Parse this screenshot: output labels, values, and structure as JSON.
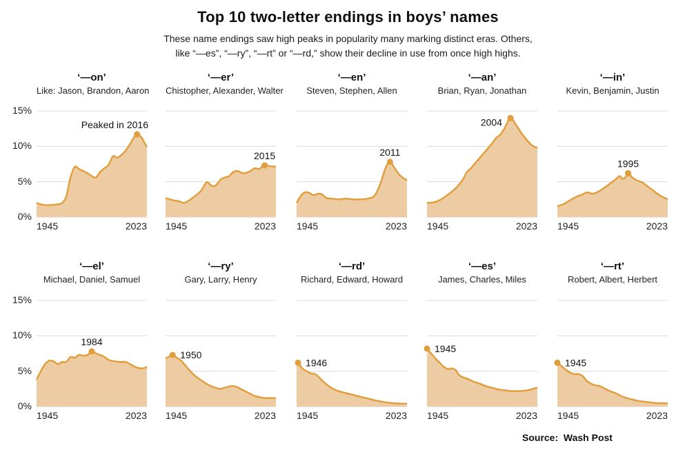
{
  "header": {
    "title": "Top 10 two-letter endings in boys’ names",
    "subtitle_lines": [
      "These name endings saw high peaks in popularity many marking distinct eras. Others,",
      "like “—es”, “—ry”, “—rt” or “—rd,” show their decline in use from once high highs."
    ]
  },
  "footer": {
    "source_label": "Source:",
    "source_value": "Wash Post"
  },
  "colors": {
    "line": "#E09E3C",
    "fill": "#EECCA3",
    "grid": "#D9D9D9",
    "annotation_text": "#111111",
    "axis_text": "#222222"
  },
  "axes": {
    "ylim": [
      0,
      15
    ],
    "xlim": [
      1945,
      2023
    ],
    "y_tick_labels": [
      "15%",
      "10%",
      "5%",
      "0%"
    ],
    "x_tick_labels": [
      "1945",
      "2023"
    ],
    "grid": true
  },
  "chart_data": [
    {
      "type": "area",
      "ending": "‘—on’",
      "examples": "Like: Jason, Brandon, Aaron",
      "annotation": {
        "label": "Peaked in 2016",
        "year": 2016,
        "value": 11.7,
        "placement": "above-end"
      },
      "x": [
        1945,
        1950,
        1955,
        1960,
        1963,
        1966,
        1969,
        1972,
        1975,
        1978,
        1981,
        1984,
        1987,
        1990,
        1993,
        1996,
        1999,
        2002,
        2005,
        2008,
        2011,
        2014,
        2016,
        2019,
        2021,
        2023
      ],
      "y": [
        2.0,
        1.7,
        1.7,
        1.8,
        2.0,
        2.9,
        5.6,
        7.1,
        6.8,
        6.5,
        6.2,
        5.8,
        5.6,
        6.4,
        6.9,
        7.4,
        8.6,
        8.4,
        8.8,
        9.4,
        10.3,
        11.3,
        11.7,
        11.3,
        10.6,
        9.9
      ]
    },
    {
      "type": "area",
      "ending": "‘—er’",
      "examples": "Chistopher, Alexander, Walter",
      "annotation": {
        "label": "2015",
        "year": 2015,
        "value": 7.3,
        "placement": "above"
      },
      "x": [
        1945,
        1950,
        1955,
        1958,
        1962,
        1966,
        1970,
        1974,
        1977,
        1980,
        1984,
        1987,
        1990,
        1993,
        1996,
        2000,
        2004,
        2008,
        2011,
        2015,
        2019,
        2023
      ],
      "y": [
        2.7,
        2.4,
        2.2,
        2.0,
        2.4,
        3.0,
        3.7,
        4.9,
        4.5,
        4.4,
        5.3,
        5.6,
        5.8,
        6.4,
        6.5,
        6.2,
        6.4,
        6.9,
        6.8,
        7.3,
        7.2,
        7.1
      ]
    },
    {
      "type": "area",
      "ending": "‘—en’",
      "examples": "Steven, Stephen, Allen",
      "annotation": {
        "label": "2011",
        "year": 2011,
        "value": 7.8,
        "placement": "above"
      },
      "x": [
        1945,
        1948,
        1951,
        1954,
        1957,
        1960,
        1963,
        1966,
        1970,
        1975,
        1980,
        1985,
        1990,
        1995,
        2000,
        2004,
        2008,
        2011,
        2014,
        2018,
        2023
      ],
      "y": [
        2.0,
        3.0,
        3.5,
        3.4,
        3.1,
        3.3,
        3.2,
        2.7,
        2.6,
        2.5,
        2.6,
        2.5,
        2.5,
        2.6,
        3.0,
        4.6,
        7.0,
        7.8,
        7.0,
        5.9,
        5.2
      ]
    },
    {
      "type": "area",
      "ending": "‘—an’",
      "examples": "Brian, Ryan, Jonathan",
      "annotation": {
        "label": "2004",
        "year": 2004,
        "value": 14.0,
        "placement": "left"
      },
      "x": [
        1945,
        1950,
        1955,
        1960,
        1965,
        1970,
        1973,
        1976,
        1979,
        1982,
        1985,
        1988,
        1991,
        1994,
        1997,
        2000,
        2004,
        2008,
        2012,
        2016,
        2020,
        2023
      ],
      "y": [
        2.0,
        2.1,
        2.5,
        3.2,
        4.0,
        5.2,
        6.3,
        6.9,
        7.6,
        8.3,
        9.0,
        9.7,
        10.4,
        11.2,
        11.7,
        12.6,
        14.0,
        13.0,
        11.8,
        10.8,
        10.0,
        9.8
      ]
    },
    {
      "type": "area",
      "ending": "‘—in’",
      "examples": "Kevin, Benjamin, Justin",
      "annotation": {
        "label": "1995",
        "year": 1995,
        "value": 6.2,
        "placement": "above"
      },
      "x": [
        1945,
        1950,
        1955,
        1960,
        1963,
        1966,
        1970,
        1974,
        1978,
        1982,
        1986,
        1989,
        1991,
        1993,
        1995,
        1998,
        2001,
        2005,
        2009,
        2013,
        2017,
        2020,
        2023
      ],
      "y": [
        1.5,
        1.9,
        2.5,
        3.0,
        3.2,
        3.5,
        3.3,
        3.6,
        4.1,
        4.7,
        5.3,
        5.8,
        5.4,
        5.6,
        6.2,
        5.6,
        5.2,
        4.9,
        4.3,
        3.7,
        3.1,
        2.8,
        2.5
      ]
    },
    {
      "type": "area",
      "ending": "‘—el’",
      "examples": "Michael, Daniel, Samuel",
      "annotation": {
        "label": "1984",
        "year": 1984,
        "value": 7.8,
        "placement": "above"
      },
      "x": [
        1945,
        1948,
        1951,
        1954,
        1957,
        1960,
        1963,
        1966,
        1969,
        1972,
        1975,
        1978,
        1981,
        1984,
        1987,
        1990,
        1993,
        1996,
        2000,
        2004,
        2008,
        2012,
        2016,
        2020,
        2023
      ],
      "y": [
        3.8,
        5.0,
        6.0,
        6.5,
        6.4,
        6.0,
        6.3,
        6.3,
        7.0,
        6.9,
        7.3,
        7.2,
        7.3,
        7.8,
        7.5,
        7.3,
        7.0,
        6.6,
        6.4,
        6.3,
        6.3,
        5.9,
        5.5,
        5.4,
        5.6
      ]
    },
    {
      "type": "area",
      "ending": "‘—ry’",
      "examples": "Gary, Larry, Henry",
      "annotation": {
        "label": "1950",
        "year": 1950,
        "value": 7.3,
        "placement": "right"
      },
      "x": [
        1945,
        1947,
        1950,
        1953,
        1956,
        1959,
        1962,
        1965,
        1968,
        1971,
        1974,
        1977,
        1980,
        1983,
        1986,
        1989,
        1992,
        1995,
        1998,
        2001,
        2004,
        2008,
        2012,
        2016,
        2020,
        2023
      ],
      "y": [
        6.8,
        7.0,
        7.3,
        6.9,
        6.5,
        5.8,
        5.1,
        4.5,
        4.0,
        3.6,
        3.2,
        2.9,
        2.7,
        2.5,
        2.6,
        2.8,
        2.9,
        2.8,
        2.5,
        2.2,
        1.9,
        1.5,
        1.3,
        1.2,
        1.2,
        1.2
      ]
    },
    {
      "type": "area",
      "ending": "‘—rd’",
      "examples": "Richard, Edward, Howard",
      "annotation": {
        "label": "1946",
        "year": 1946,
        "value": 6.2,
        "placement": "right"
      },
      "x": [
        1945,
        1946,
        1949,
        1952,
        1955,
        1958,
        1961,
        1964,
        1967,
        1970,
        1973,
        1976,
        1980,
        1984,
        1988,
        1992,
        1996,
        2000,
        2005,
        2010,
        2015,
        2023
      ],
      "y": [
        6.0,
        6.2,
        5.4,
        5.0,
        4.7,
        4.6,
        4.1,
        3.5,
        3.0,
        2.6,
        2.3,
        2.1,
        1.9,
        1.7,
        1.5,
        1.3,
        1.1,
        0.9,
        0.7,
        0.55,
        0.45,
        0.4
      ]
    },
    {
      "type": "area",
      "ending": "‘—es’",
      "examples": "James, Charles, Miles",
      "annotation": {
        "label": "1945",
        "year": 1945,
        "value": 8.2,
        "placement": "right"
      },
      "x": [
        1945,
        1948,
        1951,
        1954,
        1957,
        1960,
        1962,
        1965,
        1968,
        1971,
        1974,
        1977,
        1980,
        1984,
        1988,
        1992,
        1996,
        2000,
        2004,
        2008,
        2012,
        2016,
        2020,
        2023
      ],
      "y": [
        8.2,
        7.5,
        6.8,
        6.2,
        5.6,
        5.3,
        5.4,
        5.2,
        4.4,
        4.1,
        3.9,
        3.6,
        3.4,
        3.1,
        2.8,
        2.6,
        2.4,
        2.3,
        2.2,
        2.2,
        2.2,
        2.3,
        2.5,
        2.7
      ]
    },
    {
      "type": "area",
      "ending": "‘—rt’",
      "examples": "Robert, Albert, Herbert",
      "annotation": {
        "label": "1945",
        "year": 1945,
        "value": 6.2,
        "placement": "right"
      },
      "x": [
        1945,
        1948,
        1951,
        1954,
        1957,
        1960,
        1963,
        1966,
        1969,
        1972,
        1975,
        1978,
        1982,
        1986,
        1990,
        1994,
        1998,
        2002,
        2006,
        2010,
        2015,
        2023
      ],
      "y": [
        6.2,
        5.7,
        5.2,
        4.8,
        4.6,
        4.6,
        4.3,
        3.6,
        3.2,
        3.0,
        2.9,
        2.6,
        2.2,
        1.9,
        1.5,
        1.2,
        1.0,
        0.8,
        0.7,
        0.6,
        0.5,
        0.45
      ]
    }
  ]
}
